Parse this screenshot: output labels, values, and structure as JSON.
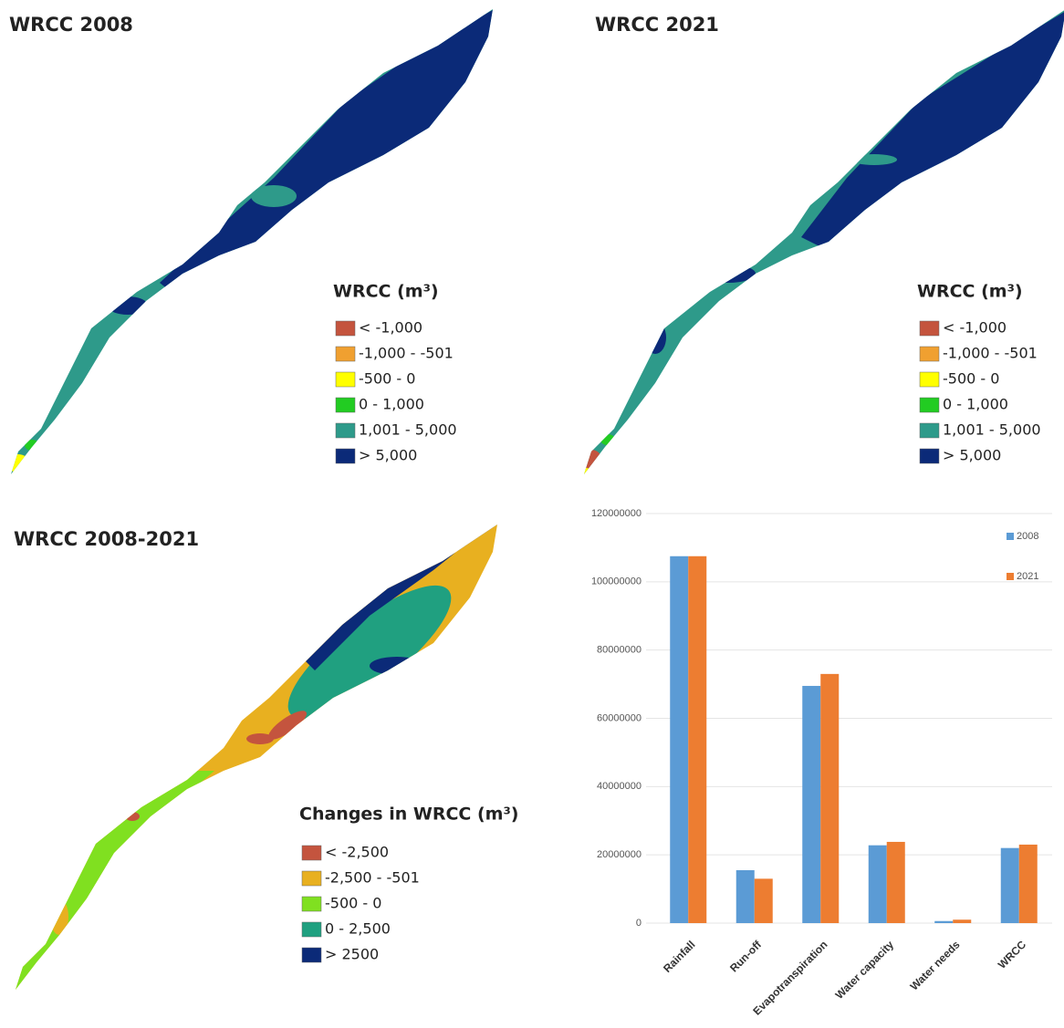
{
  "maps": [
    {
      "title": "WRCC 2008",
      "legend_title": "WRCC (m³)",
      "legend": [
        {
          "label": "< -1,000",
          "color": "#c4543e"
        },
        {
          "label": "-1,000 - -501",
          "color": "#f0a030"
        },
        {
          "label": "-500 - 0",
          "color": "#ffff00"
        },
        {
          "label": "0 - 1,000",
          "color": "#22cc22"
        },
        {
          "label": "1,001 - 5,000",
          "color": "#2e9a8a"
        },
        {
          "label": "> 5,000",
          "color": "#0b2a78"
        }
      ]
    },
    {
      "title": "WRCC 2021",
      "legend_title": "WRCC (m³)",
      "legend": [
        {
          "label": "< -1,000",
          "color": "#c4543e"
        },
        {
          "label": "-1,000 - -501",
          "color": "#f0a030"
        },
        {
          "label": "-500 - 0",
          "color": "#ffff00"
        },
        {
          "label": "0 - 1,000",
          "color": "#22cc22"
        },
        {
          "label": "1,001 - 5,000",
          "color": "#2e9a8a"
        },
        {
          "label": "> 5,000",
          "color": "#0b2a78"
        }
      ]
    },
    {
      "title": "WRCC 2008-2021",
      "legend_title": "Changes in WRCC (m³)",
      "legend": [
        {
          "label": "< -2,500",
          "color": "#c4543e"
        },
        {
          "label": "-2,500 - -501",
          "color": "#e8b020"
        },
        {
          "label": "-500 - 0",
          "color": "#80e020"
        },
        {
          "label": "0 - 2,500",
          "color": "#20a080"
        },
        {
          "label": "> 2500",
          "color": "#0b2a78"
        }
      ]
    }
  ],
  "chart_data": {
    "type": "bar",
    "categories": [
      "Rainfall",
      "Run-off",
      "Evapotranspiration",
      "Water capacity",
      "Water needs",
      "WRCC"
    ],
    "series": [
      {
        "name": "2008",
        "color": "#5b9bd5",
        "values": [
          107500000,
          15500000,
          69500000,
          22800000,
          600000,
          22000000
        ]
      },
      {
        "name": "2021",
        "color": "#ed7d31",
        "values": [
          107500000,
          13000000,
          73000000,
          23800000,
          1000000,
          23000000
        ]
      }
    ],
    "ylim": [
      0,
      120000000
    ],
    "yticks": [
      0,
      20000000,
      40000000,
      60000000,
      80000000,
      100000000,
      120000000
    ],
    "grid": true,
    "legend": "top-right"
  }
}
